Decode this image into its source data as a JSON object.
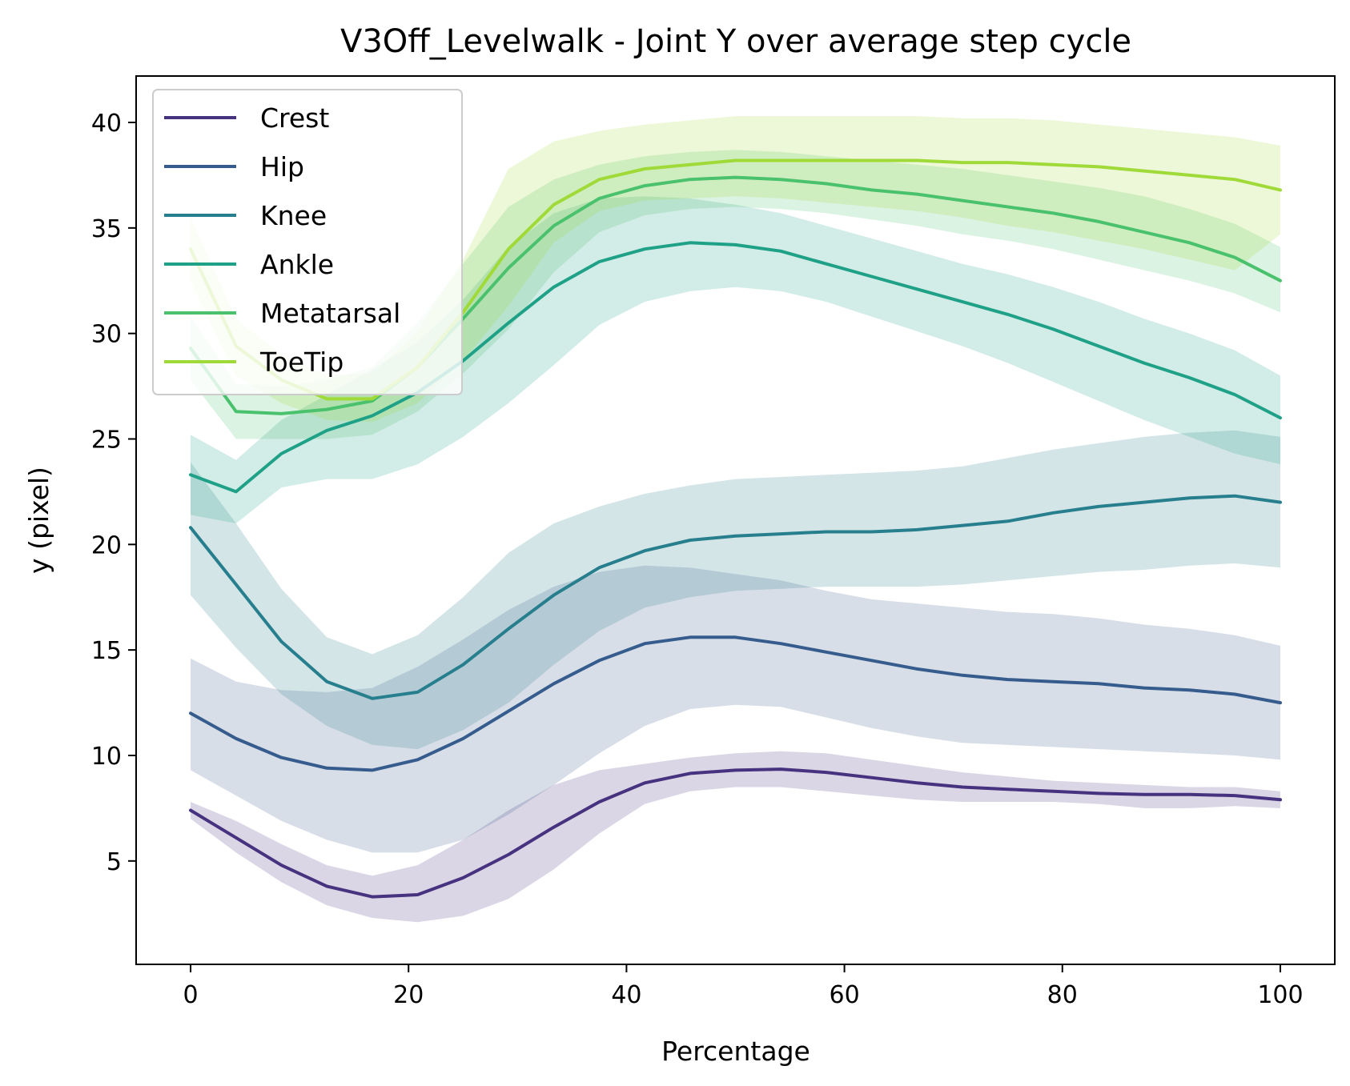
{
  "chart_data": {
    "type": "line",
    "title": "V3Off_Levelwalk - Joint Y over average step cycle",
    "xlabel": "Percentage",
    "ylabel": "y (pixel)",
    "xlim": [
      -5,
      105
    ],
    "ylim": [
      0.1,
      42.2
    ],
    "xticks": [
      0,
      20,
      40,
      60,
      80,
      100
    ],
    "yticks": [
      5,
      10,
      15,
      20,
      25,
      30,
      35,
      40
    ],
    "grid": false,
    "legend_position": "top-left",
    "x": [
      0,
      4.17,
      8.33,
      12.5,
      16.67,
      20.83,
      25,
      29.17,
      33.33,
      37.5,
      41.67,
      45.83,
      50,
      54.17,
      58.33,
      62.5,
      66.67,
      70.83,
      75,
      79.17,
      83.33,
      87.5,
      91.67,
      95.83,
      100
    ],
    "series": [
      {
        "name": "Crest",
        "color": "#46327e",
        "values": [
          7.4,
          6.1,
          4.8,
          3.8,
          3.3,
          3.4,
          4.2,
          5.3,
          6.6,
          7.8,
          8.7,
          9.15,
          9.3,
          9.35,
          9.2,
          8.95,
          8.7,
          8.5,
          8.4,
          8.3,
          8.2,
          8.15,
          8.15,
          8.1,
          7.9
        ],
        "lower": [
          7.0,
          5.4,
          4.0,
          2.9,
          2.3,
          2.1,
          2.4,
          3.2,
          4.6,
          6.3,
          7.7,
          8.3,
          8.5,
          8.5,
          8.3,
          8.1,
          7.9,
          7.8,
          7.8,
          7.8,
          7.7,
          7.5,
          7.5,
          7.6,
          7.5
        ],
        "upper": [
          7.8,
          6.9,
          5.8,
          4.8,
          4.3,
          4.8,
          6.0,
          7.4,
          8.6,
          9.3,
          9.6,
          9.9,
          10.1,
          10.2,
          10.1,
          9.8,
          9.5,
          9.2,
          9.0,
          8.8,
          8.7,
          8.6,
          8.5,
          8.5,
          8.3
        ]
      },
      {
        "name": "Hip",
        "color": "#365c8d",
        "values": [
          12.0,
          10.8,
          9.9,
          9.4,
          9.3,
          9.8,
          10.8,
          12.1,
          13.4,
          14.5,
          15.3,
          15.6,
          15.6,
          15.3,
          14.9,
          14.5,
          14.1,
          13.8,
          13.6,
          13.5,
          13.4,
          13.2,
          13.1,
          12.9,
          12.5
        ],
        "lower": [
          9.3,
          8.1,
          6.9,
          6.0,
          5.4,
          5.4,
          6.0,
          7.2,
          8.6,
          10.1,
          11.4,
          12.2,
          12.4,
          12.3,
          11.8,
          11.3,
          10.9,
          10.6,
          10.5,
          10.4,
          10.3,
          10.2,
          10.1,
          10.0,
          9.8
        ],
        "upper": [
          14.6,
          13.5,
          13.1,
          13.0,
          13.2,
          14.2,
          15.5,
          16.9,
          18.0,
          18.7,
          19.0,
          18.9,
          18.6,
          18.3,
          17.8,
          17.4,
          17.2,
          17.0,
          16.8,
          16.7,
          16.5,
          16.2,
          16.0,
          15.7,
          15.2
        ]
      },
      {
        "name": "Knee",
        "color": "#277f8e",
        "values": [
          20.8,
          18.1,
          15.4,
          13.5,
          12.7,
          13.0,
          14.3,
          16.0,
          17.6,
          18.9,
          19.7,
          20.2,
          20.4,
          20.5,
          20.6,
          20.6,
          20.7,
          20.9,
          21.1,
          21.5,
          21.8,
          22.0,
          22.2,
          22.3,
          22.0
        ],
        "lower": [
          17.6,
          15.1,
          12.9,
          11.4,
          10.5,
          10.3,
          11.2,
          12.5,
          14.3,
          15.9,
          17.0,
          17.5,
          17.8,
          17.9,
          18.0,
          18.0,
          18.0,
          18.1,
          18.3,
          18.5,
          18.7,
          18.8,
          19.0,
          19.1,
          18.9
        ],
        "upper": [
          23.9,
          21.0,
          17.9,
          15.6,
          14.8,
          15.7,
          17.5,
          19.6,
          21.0,
          21.8,
          22.4,
          22.8,
          23.1,
          23.2,
          23.3,
          23.4,
          23.5,
          23.7,
          24.1,
          24.5,
          24.8,
          25.1,
          25.3,
          25.4,
          25.1
        ]
      },
      {
        "name": "Ankle",
        "color": "#1fa187",
        "values": [
          23.3,
          22.5,
          24.3,
          25.4,
          26.1,
          27.2,
          28.7,
          30.5,
          32.2,
          33.4,
          34.0,
          34.3,
          34.2,
          33.9,
          33.3,
          32.7,
          32.1,
          31.5,
          30.9,
          30.2,
          29.4,
          28.6,
          27.9,
          27.1,
          26.0
        ],
        "lower": [
          21.4,
          21.0,
          22.7,
          23.1,
          23.1,
          23.8,
          25.1,
          26.7,
          28.5,
          30.4,
          31.5,
          32.0,
          32.2,
          32.0,
          31.5,
          30.8,
          30.1,
          29.4,
          28.6,
          27.7,
          26.8,
          25.9,
          25.1,
          24.3,
          23.8
        ],
        "upper": [
          25.2,
          24.0,
          25.9,
          27.1,
          28.3,
          29.6,
          31.6,
          34.1,
          35.7,
          36.4,
          36.5,
          36.4,
          36.1,
          35.7,
          35.1,
          34.5,
          33.9,
          33.3,
          32.8,
          32.2,
          31.5,
          30.7,
          30.0,
          29.2,
          28.0
        ]
      },
      {
        "name": "Metatarsal",
        "color": "#4ac16d",
        "values": [
          29.3,
          26.3,
          26.2,
          26.4,
          26.8,
          28.4,
          30.7,
          33.1,
          35.1,
          36.4,
          37.0,
          37.3,
          37.4,
          37.3,
          37.1,
          36.8,
          36.6,
          36.3,
          36.0,
          35.7,
          35.3,
          34.8,
          34.3,
          33.6,
          32.5
        ],
        "lower": [
          27.8,
          25.0,
          25.0,
          25.0,
          25.2,
          26.3,
          28.1,
          30.2,
          32.9,
          34.8,
          35.6,
          35.9,
          36.0,
          35.9,
          35.7,
          35.4,
          35.1,
          34.7,
          34.4,
          34.0,
          33.5,
          33.0,
          32.5,
          31.9,
          31.0
        ],
        "upper": [
          30.8,
          27.6,
          27.5,
          27.8,
          28.4,
          30.5,
          33.3,
          36.0,
          37.3,
          38.0,
          38.4,
          38.6,
          38.7,
          38.6,
          38.4,
          38.2,
          38.0,
          37.8,
          37.5,
          37.2,
          36.9,
          36.5,
          35.9,
          35.2,
          34.1
        ]
      },
      {
        "name": "ToeTip",
        "color": "#a0da39",
        "values": [
          34.0,
          29.4,
          27.8,
          26.9,
          26.9,
          28.4,
          31.0,
          34.0,
          36.1,
          37.3,
          37.8,
          38.0,
          38.2,
          38.2,
          38.2,
          38.2,
          38.2,
          38.1,
          38.1,
          38.0,
          37.9,
          37.7,
          37.5,
          37.3,
          36.8
        ],
        "lower": [
          32.5,
          28.0,
          26.7,
          25.9,
          25.8,
          26.7,
          28.7,
          31.3,
          34.3,
          35.8,
          36.3,
          36.4,
          36.5,
          36.4,
          36.2,
          36.0,
          35.8,
          35.5,
          35.1,
          34.8,
          34.4,
          34.0,
          33.5,
          33.0,
          34.7
        ],
        "upper": [
          35.5,
          30.7,
          29.0,
          28.0,
          28.1,
          30.1,
          33.5,
          37.8,
          39.1,
          39.6,
          39.9,
          40.1,
          40.3,
          40.3,
          40.3,
          40.3,
          40.3,
          40.2,
          40.2,
          40.1,
          39.9,
          39.7,
          39.5,
          39.3,
          38.9
        ]
      }
    ]
  }
}
